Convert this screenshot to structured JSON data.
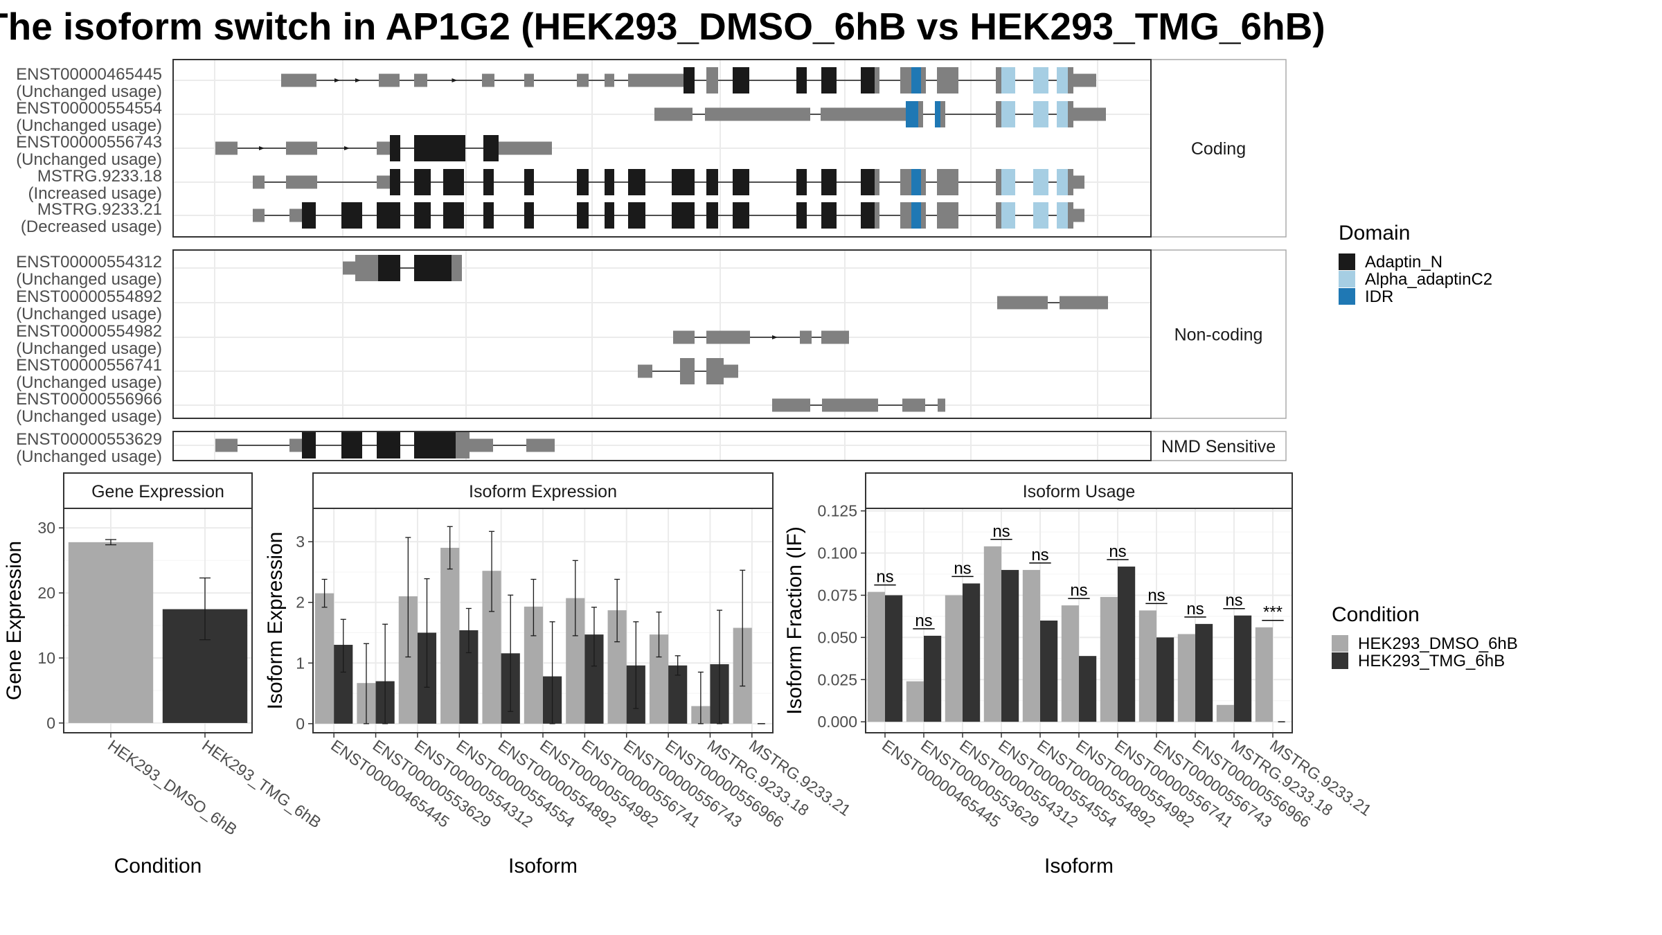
{
  "title": "The isoform switch in AP1G2 (HEK293_DMSO_6hB vs HEK293_TMG_6hB)",
  "colors": {
    "adaptin_n": "#1a1a1a",
    "alpha_adaptinc2": "#a6cee3",
    "idr": "#1f78b4",
    "no_domain": "#808080",
    "dmso": "#aaaaaa",
    "tmg": "#333333",
    "panel_border": "#333333",
    "grid": "#ebebeb"
  },
  "transcript_panels": [
    {
      "label": "Coding",
      "isoforms": [
        {
          "name": "ENST00000465445",
          "usage": "(Unchanged usage)"
        },
        {
          "name": "ENST00000554554",
          "usage": "(Unchanged usage)"
        },
        {
          "name": "ENST00000556743",
          "usage": "(Unchanged usage)"
        },
        {
          "name": "MSTRG.9233.18",
          "usage": "(Increased usage)"
        },
        {
          "name": "MSTRG.9233.21",
          "usage": "(Decreased usage)"
        }
      ]
    },
    {
      "label": "Non-coding",
      "isoforms": [
        {
          "name": "ENST00000554312",
          "usage": "(Unchanged usage)"
        },
        {
          "name": "ENST00000554892",
          "usage": "(Unchanged usage)"
        },
        {
          "name": "ENST00000554982",
          "usage": "(Unchanged usage)"
        },
        {
          "name": "ENST00000556741",
          "usage": "(Unchanged usage)"
        },
        {
          "name": "ENST00000556966",
          "usage": "(Unchanged usage)"
        }
      ]
    },
    {
      "label": "NMD Sensitive",
      "isoforms": [
        {
          "name": "ENST00000553629",
          "usage": "(Unchanged usage)"
        }
      ]
    }
  ],
  "domain_legend": {
    "title": "Domain",
    "items": [
      "Adaptin_N",
      "Alpha_adaptinC2",
      "IDR"
    ]
  },
  "condition_legend": {
    "title": "Condition",
    "items": [
      "HEK293_DMSO_6hB",
      "HEK293_TMG_6hB"
    ]
  },
  "chart_data": [
    {
      "type": "bar",
      "title": "Gene Expression",
      "xlabel": "Condition",
      "ylabel": "Gene Expression",
      "categories": [
        "HEK293_DMSO_6hB",
        "HEK293_TMG_6hB"
      ],
      "values": [
        27.8,
        17.5
      ],
      "error_low": [
        27.4,
        12.8
      ],
      "error_high": [
        28.2,
        22.3
      ],
      "ylim": [
        -1.5,
        33
      ],
      "yticks": [
        0,
        10,
        20,
        30
      ]
    },
    {
      "type": "bar",
      "title": "Isoform Expression",
      "xlabel": "Isoform",
      "ylabel": "Isoform Expression",
      "categories": [
        "ENST00000465445",
        "ENST00000553629",
        "ENST00000554312",
        "ENST00000554554",
        "ENST00000554892",
        "ENST00000554982",
        "ENST00000556741",
        "ENST00000556743",
        "ENST00000556966",
        "MSTRG.9233.18",
        "MSTRG.9233.21"
      ],
      "series": [
        {
          "name": "HEK293_DMSO_6hB",
          "values": [
            2.15,
            0.67,
            2.1,
            2.9,
            2.52,
            1.93,
            2.07,
            1.87,
            1.47,
            0.29,
            1.58
          ],
          "error_low": [
            1.92,
            0.0,
            1.1,
            2.55,
            1.85,
            1.45,
            1.45,
            1.35,
            1.1,
            0.0,
            0.62
          ],
          "error_high": [
            2.38,
            1.32,
            3.07,
            3.25,
            3.17,
            2.38,
            2.69,
            2.38,
            1.84,
            0.85,
            2.53
          ]
        },
        {
          "name": "HEK293_TMG_6hB",
          "values": [
            1.3,
            0.7,
            1.5,
            1.54,
            1.16,
            0.78,
            1.47,
            0.96,
            0.96,
            0.98,
            0.0
          ],
          "error_low": [
            0.85,
            0.0,
            0.6,
            1.17,
            0.2,
            0.0,
            0.95,
            0.25,
            0.8,
            0.0,
            0.0
          ],
          "error_high": [
            1.72,
            1.64,
            2.39,
            1.9,
            2.12,
            1.68,
            1.92,
            1.68,
            1.12,
            1.87,
            0.0
          ]
        }
      ],
      "ylim": [
        -0.15,
        3.55
      ],
      "yticks": [
        0,
        1,
        2,
        3
      ]
    },
    {
      "type": "bar",
      "title": "Isoform Usage",
      "xlabel": "Isoform",
      "ylabel": "Isoform Fraction (IF)",
      "categories": [
        "ENST00000465445",
        "ENST00000553629",
        "ENST00000554312",
        "ENST00000554554",
        "ENST00000554892",
        "ENST00000554982",
        "ENST00000556741",
        "ENST00000556743",
        "ENST00000556966",
        "MSTRG.9233.18",
        "MSTRG.9233.21"
      ],
      "series": [
        {
          "name": "HEK293_DMSO_6hB",
          "values": [
            0.077,
            0.024,
            0.075,
            0.104,
            0.09,
            0.069,
            0.074,
            0.066,
            0.052,
            0.01,
            0.056
          ]
        },
        {
          "name": "HEK293_TMG_6hB",
          "values": [
            0.075,
            0.051,
            0.082,
            0.09,
            0.06,
            0.039,
            0.092,
            0.05,
            0.058,
            0.063,
            0.0
          ]
        }
      ],
      "significance": [
        "ns",
        "ns",
        "ns",
        "ns",
        "ns",
        "ns",
        "ns",
        "ns",
        "ns",
        "ns",
        "***"
      ],
      "ylim": [
        -0.0065,
        0.1265
      ],
      "yticks": [
        "0.000",
        "0.025",
        "0.050",
        "0.075",
        "0.100",
        "0.125"
      ]
    }
  ]
}
